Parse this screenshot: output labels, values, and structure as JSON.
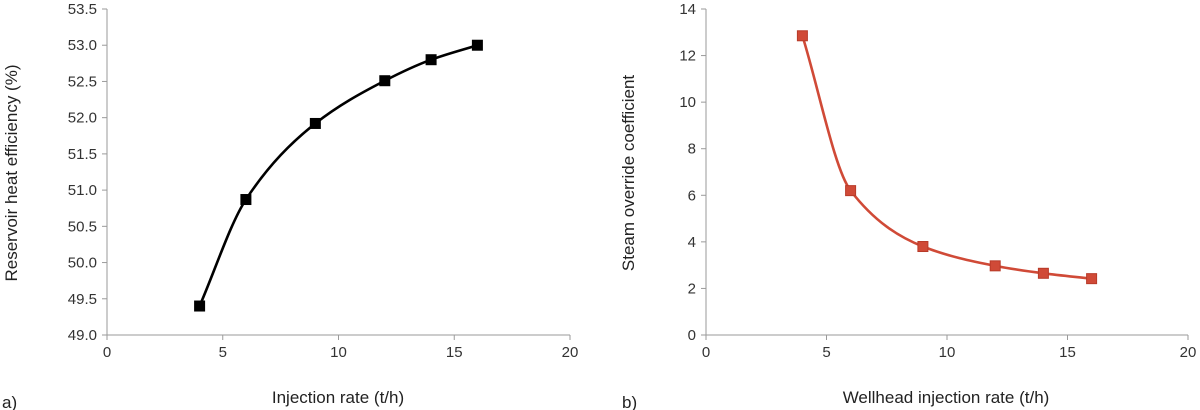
{
  "chart_data": [
    {
      "type": "line",
      "panel_label": "a)",
      "title": "",
      "xlabel": "Injection rate (t/h)",
      "ylabel": "Reservoir heat efficiency (%)",
      "xlim": [
        0,
        20
      ],
      "ylim": [
        49.0,
        53.5
      ],
      "xticks": [
        "0",
        "5",
        "10",
        "15",
        "20"
      ],
      "yticks": [
        "49.0",
        "49.5",
        "50.0",
        "50.5",
        "51.0",
        "51.5",
        "52.0",
        "52.5",
        "53.0",
        "53.5"
      ],
      "grid": false,
      "legend": "none",
      "marker": "square",
      "color": "#000000",
      "x": [
        4,
        6,
        9,
        12,
        14,
        16
      ],
      "y": [
        49.4,
        50.87,
        51.92,
        52.51,
        52.8,
        53.0
      ]
    },
    {
      "type": "line",
      "panel_label": "b)",
      "title": "",
      "xlabel": "Wellhead injection rate (t/h)",
      "ylabel": "Steam override coefficient",
      "xlim": [
        0,
        20
      ],
      "ylim": [
        0,
        14
      ],
      "xticks": [
        "0",
        "5",
        "10",
        "15",
        "20"
      ],
      "yticks": [
        "0",
        "2",
        "4",
        "6",
        "8",
        "10",
        "12",
        "14"
      ],
      "grid": false,
      "legend": "none",
      "marker": "square",
      "color": "#d04a37",
      "x": [
        4,
        6,
        9,
        12,
        14,
        16
      ],
      "y": [
        12.85,
        6.2,
        3.8,
        2.97,
        2.65,
        2.42
      ]
    }
  ]
}
